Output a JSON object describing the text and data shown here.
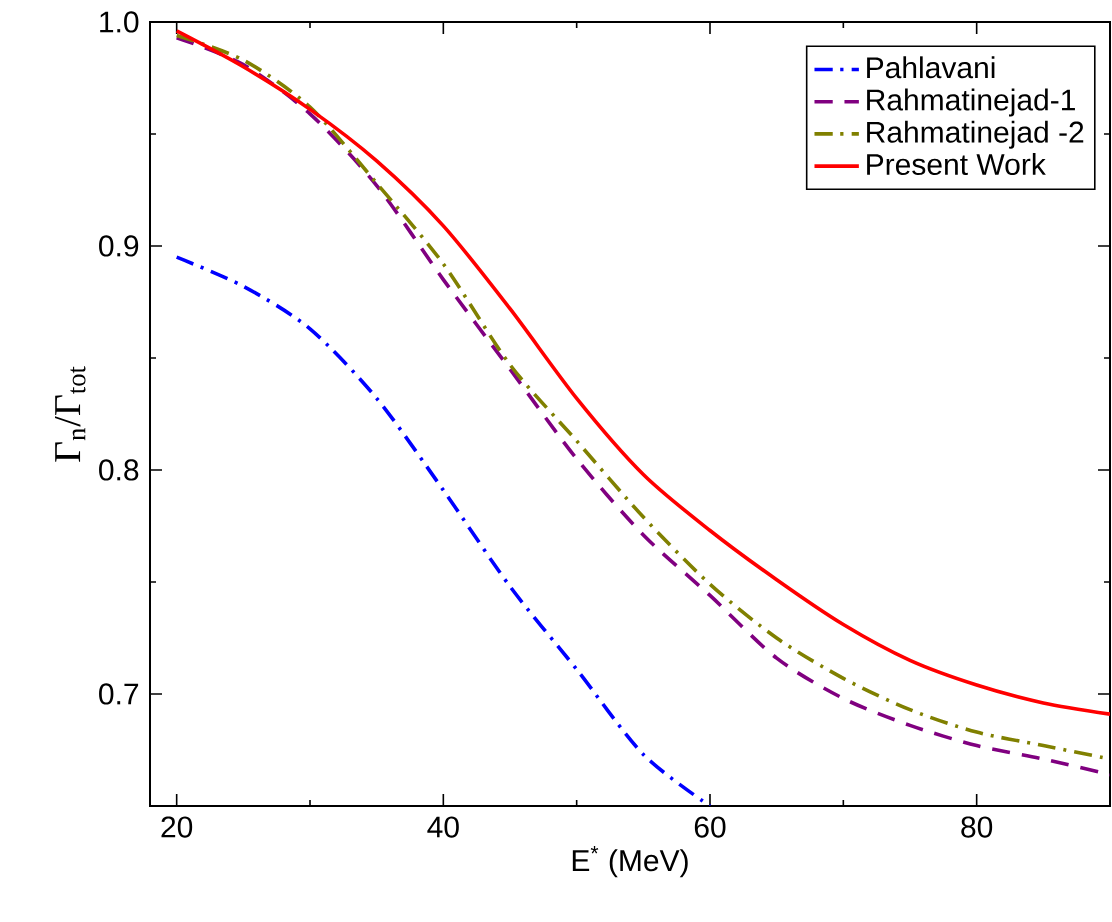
{
  "chart_data": {
    "type": "line",
    "xlabel": "E$^{*}$ (MeV)",
    "ylabel": "Γ$_{n}$/Γ$_{tot}$",
    "x": [
      20,
      25,
      30,
      35,
      40,
      45,
      50,
      55,
      60,
      65,
      70,
      75,
      80,
      85,
      90
    ],
    "series": [
      {
        "name": "Pahlavani",
        "color": "#0000ff",
        "line_style": "dashdot",
        "x": [
          20,
          25,
          30,
          35,
          40,
          45,
          50,
          55,
          60
        ],
        "values": [
          0.895,
          0.882,
          0.863,
          0.832,
          0.791,
          0.748,
          0.711,
          0.673,
          0.65
        ]
      },
      {
        "name": "Rahmatinejad-1",
        "color": "#800080",
        "line_style": "dashed",
        "values": [
          0.993,
          0.981,
          0.959,
          0.927,
          0.885,
          0.845,
          0.805,
          0.771,
          0.744,
          0.716,
          0.698,
          0.686,
          0.677,
          0.671,
          0.664
        ]
      },
      {
        "name": "Rahmatinejad -2",
        "color": "#808000",
        "line_style": "dashdot",
        "values": [
          0.994,
          0.983,
          0.962,
          0.928,
          0.892,
          0.847,
          0.813,
          0.779,
          0.749,
          0.725,
          0.707,
          0.693,
          0.683,
          0.677,
          0.671
        ]
      },
      {
        "name": "Present Work",
        "color": "#ff0000",
        "line_style": "solid",
        "values": [
          0.996,
          0.98,
          0.961,
          0.938,
          0.909,
          0.872,
          0.832,
          0.798,
          0.773,
          0.751,
          0.731,
          0.715,
          0.704,
          0.696,
          0.691
        ]
      }
    ],
    "xlim": [
      18,
      90
    ],
    "ylim": [
      0.65,
      1.0
    ],
    "xticks": [
      20,
      40,
      60,
      80
    ],
    "yticks": [
      0.7,
      0.8,
      0.9,
      {
        "value": 1.0,
        "label": "1.0"
      }
    ],
    "grid": false,
    "legend": "top right",
    "marker": "none"
  }
}
